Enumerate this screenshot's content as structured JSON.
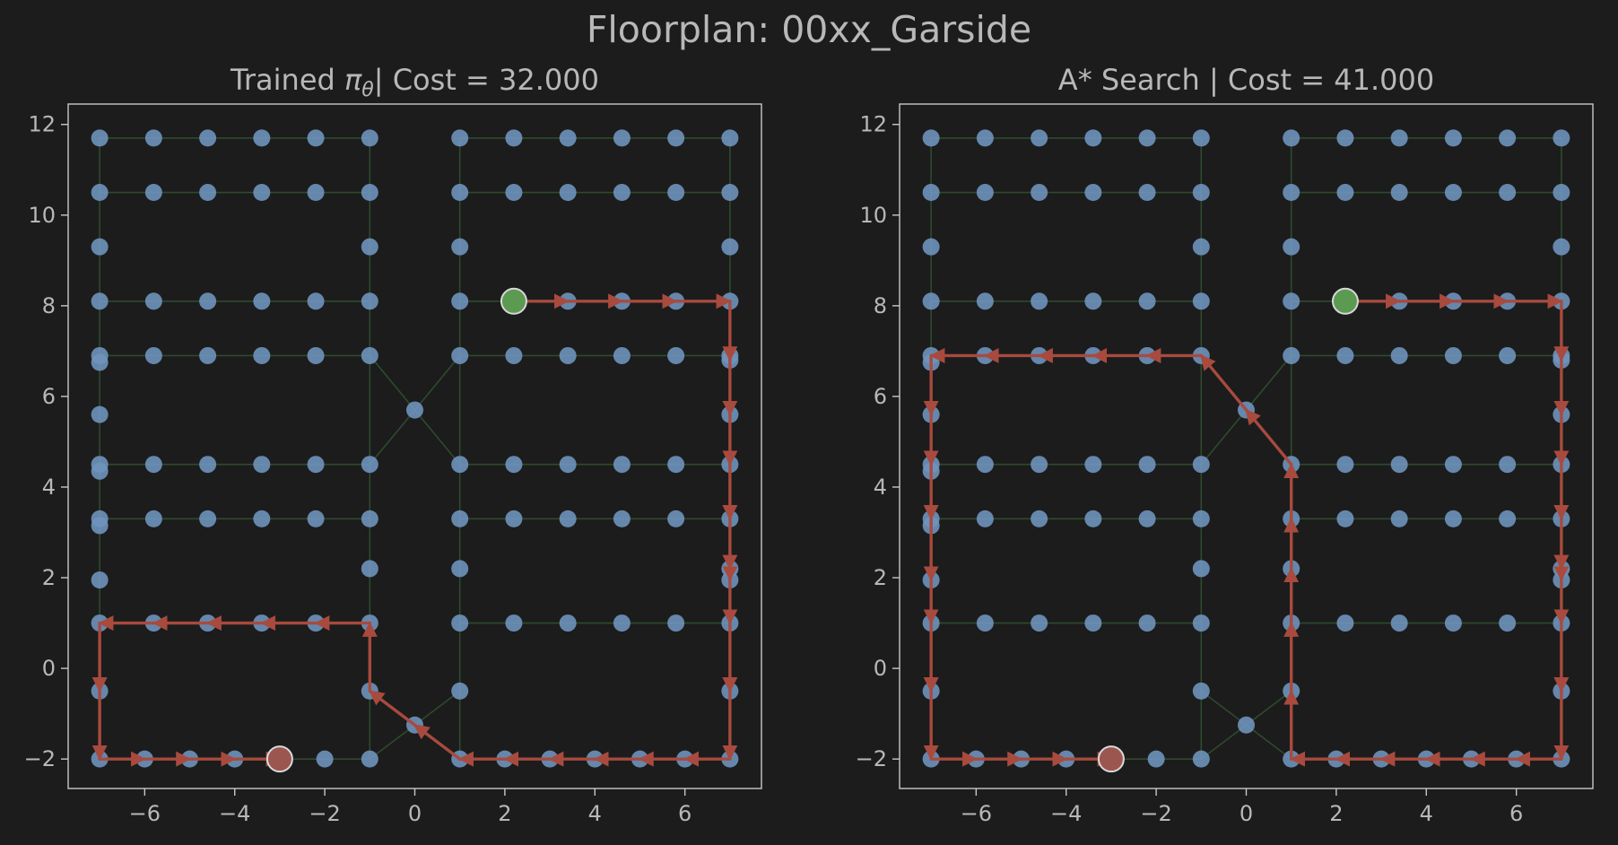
{
  "figure": {
    "title": "Floorplan: 00xx_Garside",
    "colors": {
      "background": "#1c1c1c",
      "axes_frame": "#c8c8c8",
      "text": "#b8b8b8",
      "node": "#6f93bd",
      "edge": "#2e4a2e",
      "path": "#a84a3e",
      "start": "#5c9a52",
      "goal": "#9c5650"
    }
  },
  "chart_data": [
    {
      "type": "scatter",
      "title_prefix": "Trained ",
      "title_symbol": "π",
      "title_subscript": "θ",
      "title_suffix": "| Cost = 32.000",
      "xlabel": "",
      "ylabel": "",
      "xlim": [
        -7.7,
        7.7
      ],
      "ylim": [
        -2.65,
        12.45
      ],
      "xticks": [
        -6,
        -4,
        -2,
        0,
        2,
        4,
        6
      ],
      "xtick_labels": [
        "−6",
        "−4",
        "−2",
        "0",
        "2",
        "4",
        "6"
      ],
      "yticks": [
        -2,
        0,
        2,
        4,
        6,
        8,
        10,
        12
      ],
      "ytick_labels": [
        "−2",
        "0",
        "2",
        "4",
        "6",
        "8",
        "10",
        "12"
      ],
      "grid": false,
      "start": [
        2.2,
        8.1
      ],
      "goal": [
        -3.0,
        -2.0
      ],
      "path": [
        [
          2.2,
          8.1
        ],
        [
          3.4,
          8.1
        ],
        [
          4.6,
          8.1
        ],
        [
          5.8,
          8.1
        ],
        [
          7.0,
          8.1
        ],
        [
          7.0,
          6.8
        ],
        [
          7.0,
          5.6
        ],
        [
          7.0,
          4.5
        ],
        [
          7.0,
          3.3
        ],
        [
          7.0,
          2.2
        ],
        [
          7.0,
          1.95
        ],
        [
          7.0,
          1.0
        ],
        [
          7.0,
          -0.5
        ],
        [
          7.0,
          -2.0
        ],
        [
          6.0,
          -2.0
        ],
        [
          5.0,
          -2.0
        ],
        [
          4.0,
          -2.0
        ],
        [
          3.0,
          -2.0
        ],
        [
          2.0,
          -2.0
        ],
        [
          1.0,
          -2.0
        ],
        [
          0.0,
          -1.25
        ],
        [
          -1.0,
          -0.5
        ],
        [
          -1.0,
          1.0
        ],
        [
          -2.2,
          1.0
        ],
        [
          -3.4,
          1.0
        ],
        [
          -4.6,
          1.0
        ],
        [
          -5.8,
          1.0
        ],
        [
          -7.0,
          1.0
        ],
        [
          -7.0,
          -0.5
        ],
        [
          -7.0,
          -2.0
        ],
        [
          -6.0,
          -2.0
        ],
        [
          -5.0,
          -2.0
        ],
        [
          -4.0,
          -2.0
        ],
        [
          -3.0,
          -2.0
        ]
      ]
    },
    {
      "type": "scatter",
      "title_prefix": "A* Search | Cost = 41.000",
      "title_symbol": "",
      "title_subscript": "",
      "title_suffix": "",
      "xlabel": "",
      "ylabel": "",
      "xlim": [
        -7.7,
        7.7
      ],
      "ylim": [
        -2.65,
        12.45
      ],
      "xticks": [
        -6,
        -4,
        -2,
        0,
        2,
        4,
        6
      ],
      "xtick_labels": [
        "−6",
        "−4",
        "−2",
        "0",
        "2",
        "4",
        "6"
      ],
      "yticks": [
        -2,
        0,
        2,
        4,
        6,
        8,
        10,
        12
      ],
      "ytick_labels": [
        "−2",
        "0",
        "2",
        "4",
        "6",
        "8",
        "10",
        "12"
      ],
      "grid": false,
      "start": [
        2.2,
        8.1
      ],
      "goal": [
        -3.0,
        -2.0
      ],
      "path": [
        [
          2.2,
          8.1
        ],
        [
          3.4,
          8.1
        ],
        [
          4.6,
          8.1
        ],
        [
          5.8,
          8.1
        ],
        [
          7.0,
          8.1
        ],
        [
          7.0,
          6.8
        ],
        [
          7.0,
          5.6
        ],
        [
          7.0,
          4.5
        ],
        [
          7.0,
          3.3
        ],
        [
          7.0,
          2.2
        ],
        [
          7.0,
          1.95
        ],
        [
          7.0,
          1.0
        ],
        [
          7.0,
          -0.5
        ],
        [
          7.0,
          -2.0
        ],
        [
          6.0,
          -2.0
        ],
        [
          5.0,
          -2.0
        ],
        [
          4.0,
          -2.0
        ],
        [
          3.0,
          -2.0
        ],
        [
          2.0,
          -2.0
        ],
        [
          1.0,
          -2.0
        ],
        [
          1.0,
          -0.5
        ],
        [
          1.0,
          1.0
        ],
        [
          1.0,
          2.2
        ],
        [
          1.0,
          3.3
        ],
        [
          1.0,
          4.5
        ],
        [
          0.0,
          5.7
        ],
        [
          -1.0,
          6.9
        ],
        [
          -2.2,
          6.9
        ],
        [
          -3.4,
          6.9
        ],
        [
          -4.6,
          6.9
        ],
        [
          -5.8,
          6.9
        ],
        [
          -7.0,
          6.9
        ],
        [
          -7.0,
          5.6
        ],
        [
          -7.0,
          4.5
        ],
        [
          -7.0,
          3.3
        ],
        [
          -7.0,
          1.95
        ],
        [
          -7.0,
          1.0
        ],
        [
          -7.0,
          -0.5
        ],
        [
          -7.0,
          -2.0
        ],
        [
          -6.0,
          -2.0
        ],
        [
          -5.0,
          -2.0
        ],
        [
          -4.0,
          -2.0
        ],
        [
          -3.0,
          -2.0
        ]
      ]
    }
  ],
  "graph": {
    "nodes": [
      [
        -7.0,
        11.7
      ],
      [
        -5.8,
        11.7
      ],
      [
        -4.6,
        11.7
      ],
      [
        -3.4,
        11.7
      ],
      [
        -2.2,
        11.7
      ],
      [
        -1.0,
        11.7
      ],
      [
        -7.0,
        10.5
      ],
      [
        -5.8,
        10.5
      ],
      [
        -4.6,
        10.5
      ],
      [
        -3.4,
        10.5
      ],
      [
        -2.2,
        10.5
      ],
      [
        -1.0,
        10.5
      ],
      [
        -7.0,
        9.3
      ],
      [
        -1.0,
        9.3
      ],
      [
        -7.0,
        8.1
      ],
      [
        -5.8,
        8.1
      ],
      [
        -4.6,
        8.1
      ],
      [
        -3.4,
        8.1
      ],
      [
        -2.2,
        8.1
      ],
      [
        -1.0,
        8.1
      ],
      [
        -7.0,
        6.9
      ],
      [
        -5.8,
        6.9
      ],
      [
        -4.6,
        6.9
      ],
      [
        -3.4,
        6.9
      ],
      [
        -2.2,
        6.9
      ],
      [
        -1.0,
        6.9
      ],
      [
        -7.0,
        6.75
      ],
      [
        -7.0,
        5.6
      ],
      [
        -7.0,
        4.5
      ],
      [
        -5.8,
        4.5
      ],
      [
        -4.6,
        4.5
      ],
      [
        -3.4,
        4.5
      ],
      [
        -2.2,
        4.5
      ],
      [
        -1.0,
        4.5
      ],
      [
        -7.0,
        4.35
      ],
      [
        -7.0,
        3.3
      ],
      [
        -5.8,
        3.3
      ],
      [
        -4.6,
        3.3
      ],
      [
        -3.4,
        3.3
      ],
      [
        -2.2,
        3.3
      ],
      [
        -1.0,
        3.3
      ],
      [
        -7.0,
        3.15
      ],
      [
        -1.0,
        2.2
      ],
      [
        -7.0,
        1.95
      ],
      [
        -7.0,
        1.0
      ],
      [
        -5.8,
        1.0
      ],
      [
        -4.6,
        1.0
      ],
      [
        -3.4,
        1.0
      ],
      [
        -2.2,
        1.0
      ],
      [
        -1.0,
        1.0
      ],
      [
        -7.0,
        -0.5
      ],
      [
        -1.0,
        -0.5
      ],
      [
        -7.0,
        -2.0
      ],
      [
        -6.0,
        -2.0
      ],
      [
        -5.0,
        -2.0
      ],
      [
        -4.0,
        -2.0
      ],
      [
        -3.0,
        -2.0
      ],
      [
        -2.0,
        -2.0
      ],
      [
        -1.0,
        -2.0
      ],
      [
        0.0,
        5.7
      ],
      [
        0.0,
        -1.25
      ],
      [
        1.0,
        11.7
      ],
      [
        2.2,
        11.7
      ],
      [
        3.4,
        11.7
      ],
      [
        4.6,
        11.7
      ],
      [
        5.8,
        11.7
      ],
      [
        7.0,
        11.7
      ],
      [
        1.0,
        10.5
      ],
      [
        2.2,
        10.5
      ],
      [
        3.4,
        10.5
      ],
      [
        4.6,
        10.5
      ],
      [
        5.8,
        10.5
      ],
      [
        7.0,
        10.5
      ],
      [
        1.0,
        9.3
      ],
      [
        7.0,
        9.3
      ],
      [
        1.0,
        8.1
      ],
      [
        2.2,
        8.1
      ],
      [
        3.4,
        8.1
      ],
      [
        4.6,
        8.1
      ],
      [
        5.8,
        8.1
      ],
      [
        7.0,
        8.1
      ],
      [
        1.0,
        6.9
      ],
      [
        2.2,
        6.9
      ],
      [
        3.4,
        6.9
      ],
      [
        4.6,
        6.9
      ],
      [
        5.8,
        6.9
      ],
      [
        7.0,
        6.9
      ],
      [
        7.0,
        6.8
      ],
      [
        7.0,
        5.6
      ],
      [
        1.0,
        4.5
      ],
      [
        2.2,
        4.5
      ],
      [
        3.4,
        4.5
      ],
      [
        4.6,
        4.5
      ],
      [
        5.8,
        4.5
      ],
      [
        7.0,
        4.5
      ],
      [
        1.0,
        3.3
      ],
      [
        2.2,
        3.3
      ],
      [
        3.4,
        3.3
      ],
      [
        4.6,
        3.3
      ],
      [
        5.8,
        3.3
      ],
      [
        7.0,
        3.3
      ],
      [
        1.0,
        2.2
      ],
      [
        7.0,
        2.2
      ],
      [
        7.0,
        1.95
      ],
      [
        1.0,
        1.0
      ],
      [
        2.2,
        1.0
      ],
      [
        3.4,
        1.0
      ],
      [
        4.6,
        1.0
      ],
      [
        5.8,
        1.0
      ],
      [
        7.0,
        1.0
      ],
      [
        1.0,
        -0.5
      ],
      [
        7.0,
        -0.5
      ],
      [
        1.0,
        -2.0
      ],
      [
        2.0,
        -2.0
      ],
      [
        3.0,
        -2.0
      ],
      [
        4.0,
        -2.0
      ],
      [
        5.0,
        -2.0
      ],
      [
        6.0,
        -2.0
      ],
      [
        7.0,
        -2.0
      ]
    ],
    "edges": [
      [
        [
          -7.0,
          11.7
        ],
        [
          -1.0,
          11.7
        ]
      ],
      [
        [
          -7.0,
          10.5
        ],
        [
          -1.0,
          10.5
        ]
      ],
      [
        [
          -7.0,
          8.1
        ],
        [
          -1.0,
          8.1
        ]
      ],
      [
        [
          -7.0,
          6.9
        ],
        [
          -1.0,
          6.9
        ]
      ],
      [
        [
          -7.0,
          4.5
        ],
        [
          -1.0,
          4.5
        ]
      ],
      [
        [
          -7.0,
          3.3
        ],
        [
          -1.0,
          3.3
        ]
      ],
      [
        [
          -7.0,
          1.0
        ],
        [
          -1.0,
          1.0
        ]
      ],
      [
        [
          -7.0,
          -2.0
        ],
        [
          -1.0,
          -2.0
        ]
      ],
      [
        [
          -7.0,
          11.7
        ],
        [
          -7.0,
          -2.0
        ]
      ],
      [
        [
          -1.0,
          11.7
        ],
        [
          -1.0,
          -2.0
        ]
      ],
      [
        [
          1.0,
          11.7
        ],
        [
          7.0,
          11.7
        ]
      ],
      [
        [
          1.0,
          10.5
        ],
        [
          7.0,
          10.5
        ]
      ],
      [
        [
          1.0,
          8.1
        ],
        [
          7.0,
          8.1
        ]
      ],
      [
        [
          1.0,
          6.9
        ],
        [
          7.0,
          6.9
        ]
      ],
      [
        [
          1.0,
          4.5
        ],
        [
          7.0,
          4.5
        ]
      ],
      [
        [
          1.0,
          3.3
        ],
        [
          7.0,
          3.3
        ]
      ],
      [
        [
          1.0,
          1.0
        ],
        [
          7.0,
          1.0
        ]
      ],
      [
        [
          1.0,
          -2.0
        ],
        [
          7.0,
          -2.0
        ]
      ],
      [
        [
          1.0,
          11.7
        ],
        [
          1.0,
          -2.0
        ]
      ],
      [
        [
          7.0,
          11.7
        ],
        [
          7.0,
          -2.0
        ]
      ],
      [
        [
          -1.0,
          6.9
        ],
        [
          0.0,
          5.7
        ]
      ],
      [
        [
          0.0,
          5.7
        ],
        [
          1.0,
          6.9
        ]
      ],
      [
        [
          -1.0,
          4.5
        ],
        [
          0.0,
          5.7
        ]
      ],
      [
        [
          0.0,
          5.7
        ],
        [
          1.0,
          4.5
        ]
      ],
      [
        [
          -1.0,
          -0.5
        ],
        [
          0.0,
          -1.25
        ]
      ],
      [
        [
          0.0,
          -1.25
        ],
        [
          1.0,
          -0.5
        ]
      ],
      [
        [
          -1.0,
          -2.0
        ],
        [
          0.0,
          -1.25
        ]
      ],
      [
        [
          0.0,
          -1.25
        ],
        [
          1.0,
          -2.0
        ]
      ]
    ]
  }
}
